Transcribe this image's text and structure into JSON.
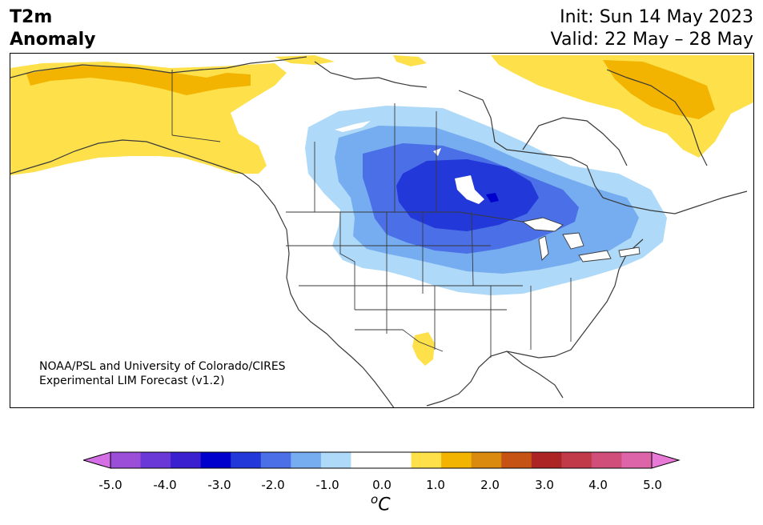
{
  "title": {
    "variable": "T2m",
    "subtitle": "Anomaly",
    "init": "Init: Sun 14 May 2023",
    "valid": "Valid: 22 May – 28 May"
  },
  "credit": {
    "line1": "NOAA/PSL and University of Colorado/CIRES",
    "line2": "Experimental LIM Forecast (v1.2)"
  },
  "colorbar": {
    "tick_labels": [
      "-5.0",
      "-4.0",
      "-3.0",
      "-2.0",
      "-1.0",
      "0.0",
      "1.0",
      "2.0",
      "3.0",
      "4.0",
      "5.0"
    ],
    "unit_base": "C",
    "unit_super": "o",
    "colors": [
      "#d46fe6",
      "#9b4fd9",
      "#6a38d6",
      "#3b20cf",
      "#0000cd",
      "#2238d9",
      "#4a6fe6",
      "#75adf0",
      "#aed9f8",
      "#ffffff",
      "#ffffff",
      "#fde04a",
      "#f2b400",
      "#db8a10",
      "#c55414",
      "#ad2424",
      "#c03a4a",
      "#cf4f7a",
      "#dd64a8",
      "#e979d6"
    ]
  },
  "map": {
    "region": "North America",
    "anomaly_colors": {
      "cold_1": "#aed9f8",
      "cold_2": "#75adf0",
      "cold_3": "#4a6fe6",
      "cold_4": "#2238d9",
      "cold_5": "#0000cd",
      "warm_1": "#fde04a",
      "warm_2": "#f2b400"
    }
  }
}
